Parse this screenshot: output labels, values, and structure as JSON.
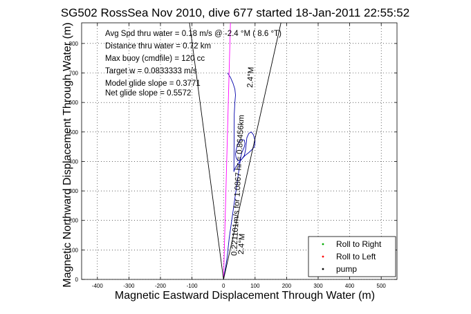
{
  "chart_data": {
    "type": "line",
    "title": "SG502 RossSea Nov 2010, dive 677 started 18-Jan-2011 22:55:52",
    "xlabel": "Magnetic Eastward Displacement Through Water (m)",
    "ylabel": "Magnetic Northward Displacement Through Water (m)",
    "xlim": [
      -450,
      550
    ],
    "ylim": [
      0,
      870
    ],
    "xticks": [
      -400,
      -300,
      -200,
      -100,
      0,
      100,
      200,
      300,
      400,
      500
    ],
    "yticks": [
      0,
      100,
      200,
      300,
      400,
      500,
      600,
      700,
      800
    ],
    "grid": true,
    "legend_position": "bottom-right",
    "annotations": [
      "Avg Spd thru water = 0.18 m/s @ -2.4 °M ( 8.6 °T)",
      "Distance thru water = 0.72 km",
      "Max buoy (cmdfile) = 120 cc",
      "Target w = 0.0833333 m/s",
      "Model glide slope = 0.3771",
      "Net glide slope = 0.5572"
    ],
    "rotated_labels": {
      "heading_upper": "2.4°M",
      "heading_lower": "2.4°M",
      "speed_text": "0.221101m/s for 1.0867 hr = 0.86456km"
    },
    "legend": [
      {
        "label": "Roll to Right",
        "color": "#00aa00",
        "marker": "."
      },
      {
        "label": "Roll to Left",
        "color": "#ff0000",
        "marker": "."
      },
      {
        "label": "pump",
        "color": "#000000",
        "marker": "."
      }
    ],
    "series": [
      {
        "name": "",
        "color": "#0000aa",
        "x": [
          0,
          3,
          8,
          12,
          15,
          18,
          22,
          26,
          30,
          34,
          38,
          42,
          46,
          50,
          54,
          58,
          62,
          66,
          68,
          66,
          58,
          50,
          44,
          40,
          38,
          40,
          46,
          56,
          66,
          70,
          72,
          74,
          80,
          88,
          95,
          100,
          98,
          90,
          80,
          68,
          55,
          45,
          38,
          34,
          33,
          34,
          36,
          38,
          36,
          30,
          22,
          16,
          12
        ],
        "y": [
          0,
          20,
          50,
          80,
          110,
          140,
          170,
          200,
          230,
          260,
          290,
          320,
          350,
          380,
          410,
          430,
          440,
          450,
          460,
          472,
          474,
          468,
          455,
          440,
          425,
          412,
          402,
          405,
          420,
          440,
          460,
          480,
          495,
          500,
          490,
          470,
          450,
          440,
          430,
          420,
          405,
          390,
          380,
          370,
          365,
          560,
          600,
          625,
          645,
          665,
          685,
          695,
          700
        ]
      },
      {
        "name": "",
        "color": "#ff00ff",
        "x": [
          0,
          22
        ],
        "y": [
          0,
          870
        ]
      },
      {
        "name": "",
        "color": "#000000",
        "x": [
          0,
          -108
        ],
        "y": [
          0,
          870
        ]
      },
      {
        "name": "",
        "color": "#000000",
        "x": [
          0,
          182
        ],
        "y": [
          0,
          870
        ]
      }
    ]
  }
}
